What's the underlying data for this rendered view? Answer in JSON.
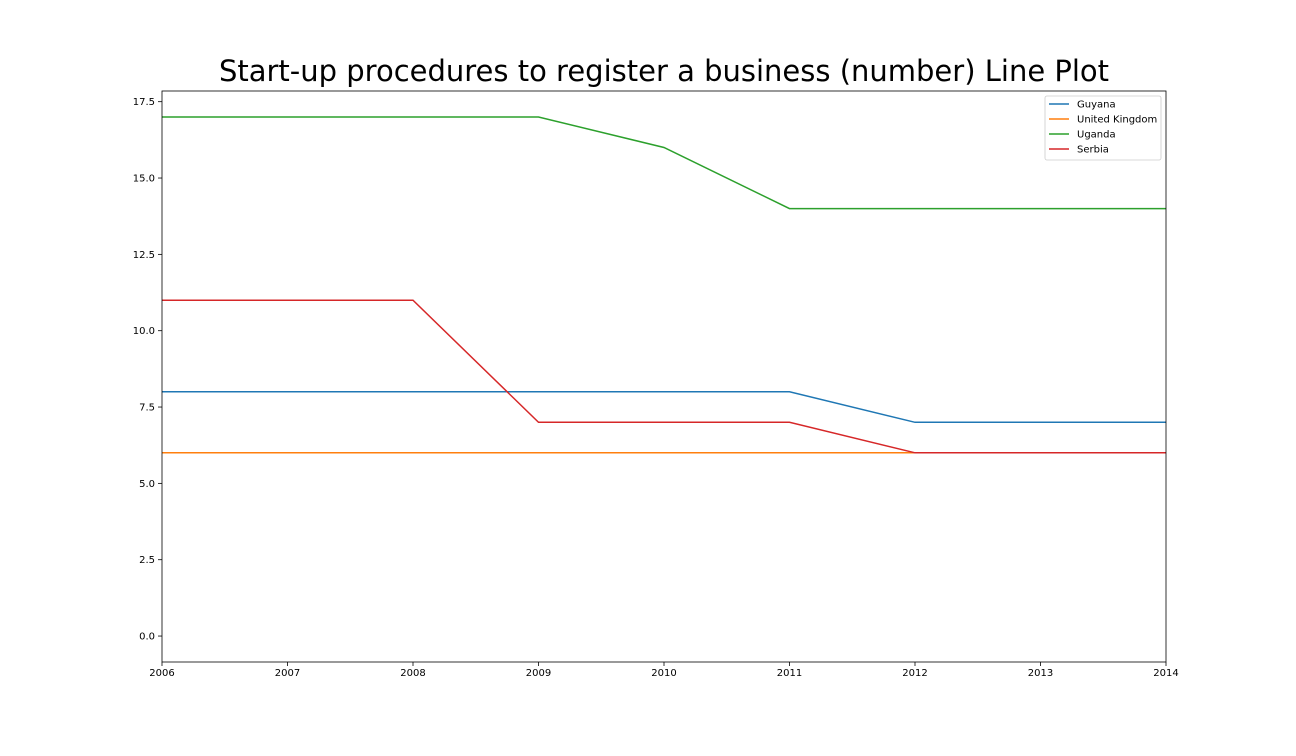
{
  "chart_data": {
    "type": "line",
    "title": "Start-up procedures to register a business (number) Line Plot",
    "xlabel": "",
    "ylabel": "",
    "x": [
      2006,
      2007,
      2008,
      2009,
      2010,
      2011,
      2012,
      2013,
      2014
    ],
    "x_tick_labels": [
      "2006",
      "2007",
      "2008",
      "2009",
      "2010",
      "2011",
      "2012",
      "2013",
      "2014"
    ],
    "y_ticks": [
      0.0,
      2.5,
      5.0,
      7.5,
      10.0,
      12.5,
      15.0,
      17.5
    ],
    "y_tick_labels": [
      "0.0",
      "2.5",
      "5.0",
      "7.5",
      "10.0",
      "12.5",
      "15.0",
      "17.5"
    ],
    "xlim": [
      2006,
      2014
    ],
    "ylim": [
      -0.85,
      17.85
    ],
    "grid": false,
    "legend_position": "top-right",
    "series": [
      {
        "name": "Guyana",
        "color": "#1f77b4",
        "values": [
          8,
          8,
          8,
          8,
          8,
          8,
          7,
          7,
          7
        ]
      },
      {
        "name": "United Kingdom",
        "color": "#ff7f0e",
        "values": [
          6,
          6,
          6,
          6,
          6,
          6,
          6,
          6,
          6
        ]
      },
      {
        "name": "Uganda",
        "color": "#2ca02c",
        "values": [
          17,
          17,
          17,
          17,
          16,
          14,
          14,
          14,
          14
        ]
      },
      {
        "name": "Serbia",
        "color": "#d62728",
        "values": [
          11,
          11,
          11,
          7,
          7,
          7,
          6,
          6,
          6
        ]
      }
    ]
  }
}
